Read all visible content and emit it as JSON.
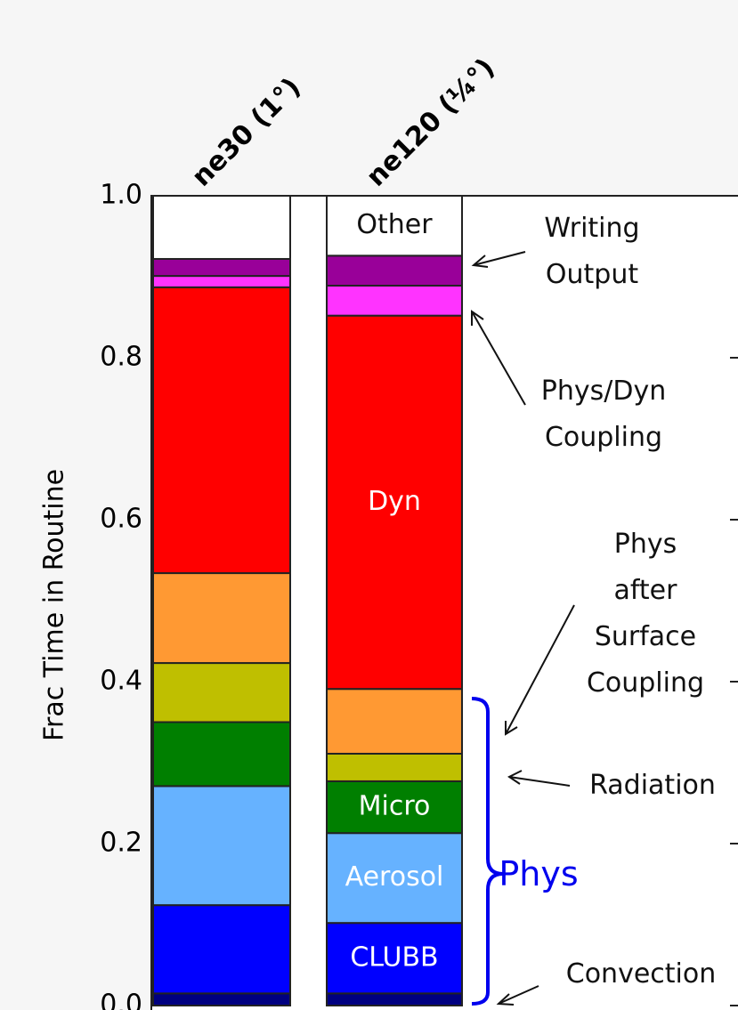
{
  "chart_data": {
    "type": "stacked_bar",
    "categories": [
      "ne30 (1°)",
      "ne120 (¼°)"
    ],
    "y_label": "Frac Time in Routine",
    "ylim": [
      0,
      1.0
    ],
    "yticks": [
      {
        "value": 0,
        "label": "0.0"
      },
      0.2,
      0.4,
      0.6,
      0.8,
      {
        "value": 1.0,
        "label": "1.0"
      }
    ],
    "series": [
      {
        "name": "Convection",
        "color": "#000080",
        "values": [
          0.015,
          0.015
        ]
      },
      {
        "name": "CLUBB",
        "color": "#0000ff",
        "values": [
          0.109,
          0.087
        ]
      },
      {
        "name": "Aerosol",
        "color": "#66b2ff",
        "values": [
          0.147,
          0.111
        ]
      },
      {
        "name": "Micro",
        "color": "#007f00",
        "values": [
          0.079,
          0.064
        ]
      },
      {
        "name": "Radiation",
        "color": "#bfbf00",
        "values": [
          0.073,
          0.034
        ]
      },
      {
        "name": "Phys after\nSurface\nCoupling",
        "color": "#ff9933",
        "values": [
          0.111,
          0.08
        ]
      },
      {
        "name": "Dyn",
        "color": "#ff0000",
        "values": [
          0.353,
          0.461
        ]
      },
      {
        "name": "Phys/Dyn\nCoupling",
        "color": "#ff33ff",
        "values": [
          0.014,
          0.037
        ]
      },
      {
        "name": "Writing\nOutput",
        "color": "#990099",
        "values": [
          0.021,
          0.037
        ]
      },
      {
        "name": "Other",
        "color": "#ffffff",
        "values": [
          0.078,
          0.074
        ]
      }
    ],
    "annotation": "Phys"
  }
}
